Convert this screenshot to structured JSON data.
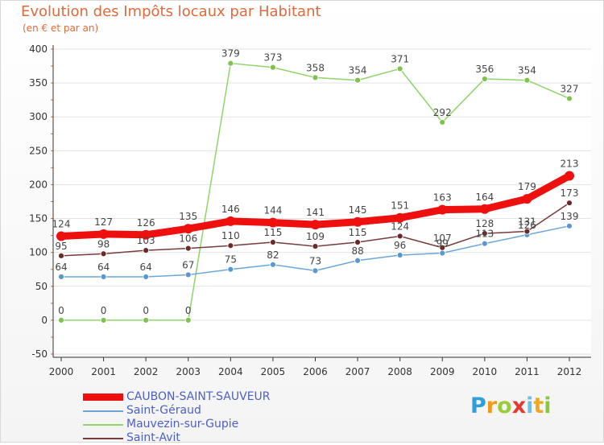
{
  "title": "Evolution des Impôts locaux par Habitant",
  "subtitle": "(en € et par an)",
  "brand": [
    "P",
    "r",
    "o",
    "x",
    "i",
    "t",
    "i"
  ],
  "brand_colors": [
    "#2e9fd8",
    "#f09a1c",
    "#9bcc3c",
    "#e8372c",
    "#6cc1e8",
    "#f2a81d",
    "#8cc63e"
  ],
  "chart_data": {
    "type": "line",
    "x": [
      "2000",
      "2001",
      "2002",
      "2003",
      "2004",
      "2005",
      "2006",
      "2007",
      "2008",
      "2009",
      "2010",
      "2011",
      "2012"
    ],
    "ylim": [
      -50,
      400
    ],
    "yticks": [
      "-50",
      "0",
      "50",
      "100",
      "150",
      "200",
      "250",
      "300",
      "350",
      "400"
    ],
    "ytick_values": [
      -50,
      0,
      50,
      100,
      150,
      200,
      250,
      300,
      350,
      400
    ],
    "series": [
      {
        "name": "Mauvezin-sur-Gupie",
        "color": "#8fd46a",
        "marker": "#7fc24e",
        "values": [
          0,
          0,
          0,
          0,
          379,
          373,
          358,
          354,
          371,
          292,
          356,
          354,
          327
        ]
      },
      {
        "name": "Saint-Géraud",
        "color": "#6ca6d8",
        "marker": "#5b97d0",
        "values": [
          64,
          64,
          64,
          67,
          75,
          82,
          73,
          88,
          96,
          99,
          113,
          126,
          139
        ]
      },
      {
        "name": "Saint-Avit",
        "color": "#7a3a3a",
        "marker": "#6b2a2a",
        "values": [
          95,
          98,
          103,
          106,
          110,
          115,
          109,
          115,
          124,
          107,
          128,
          131,
          173
        ]
      },
      {
        "name": "CAUBON-SAINT-SAUVEUR",
        "color": "#ee0f0f",
        "marker": "#ee0f0f",
        "values": [
          124,
          127,
          126,
          135,
          146,
          144,
          141,
          145,
          151,
          163,
          164,
          179,
          213
        ]
      }
    ],
    "data_labels": {
      "Mauvezin-sur-Gupie": [
        "0",
        "0",
        "0",
        "0",
        "379",
        "373",
        "358",
        "354",
        "371",
        "292",
        "356",
        "354",
        "327"
      ],
      "Saint-Géraud": [
        "64",
        "64",
        "64",
        "67",
        "75",
        "82",
        "73",
        "88",
        "96",
        "99",
        "113",
        "126",
        "139"
      ],
      "Saint-Avit": [
        "95",
        "98",
        "103",
        "106",
        "110",
        "115",
        "109",
        "115",
        "124",
        "107",
        "128",
        "131",
        "173"
      ],
      "CAUBON-SAINT-SAUVEUR": [
        "124",
        "127",
        "126",
        "135",
        "146",
        "144",
        "141",
        "145",
        "151",
        "163",
        "164",
        "179",
        "213"
      ]
    },
    "legend": [
      {
        "label": "CAUBON-SAINT-SAUVEUR",
        "color": "#ee0f0f"
      },
      {
        "label": "Saint-Géraud",
        "color": "#6ca6d8"
      },
      {
        "label": "Mauvezin-sur-Gupie",
        "color": "#8fd46a"
      },
      {
        "label": "Saint-Avit",
        "color": "#7a3a3a"
      }
    ]
  }
}
